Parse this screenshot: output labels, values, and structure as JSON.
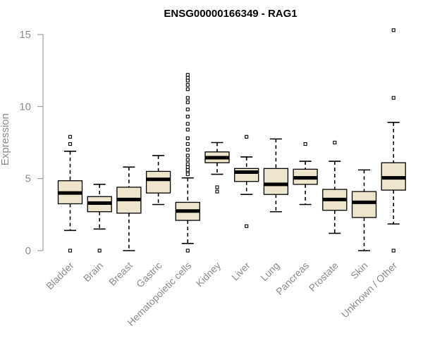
{
  "chart_data": {
    "type": "box",
    "title": "ENSG00000166349 - RAG1",
    "ylabel": "Expression",
    "xlabel": "",
    "ylim": [
      0,
      15.5
    ],
    "yticks": [
      0,
      5,
      10,
      15
    ],
    "colors": {
      "box_fill": "#ede5cc",
      "stroke": "#000000",
      "axis": "#8c8c8c"
    },
    "categories": [
      "Bladder",
      "Brain",
      "Breast",
      "Gastric",
      "Hematopoietic cells",
      "Kidney",
      "Liver",
      "Lung",
      "Pancreas",
      "Prostate",
      "Skin",
      "Unknown / Other"
    ],
    "boxes": [
      {
        "name": "Bladder",
        "low": 1.4,
        "q1": 3.25,
        "median": 4.0,
        "q3": 4.85,
        "high": 6.9,
        "outliers": [
          0,
          7.4,
          7.9
        ]
      },
      {
        "name": "Brain",
        "low": 1.5,
        "q1": 2.7,
        "median": 3.3,
        "q3": 3.75,
        "high": 4.6,
        "outliers": [
          0
        ]
      },
      {
        "name": "Breast",
        "low": 0,
        "q1": 2.6,
        "median": 3.55,
        "q3": 4.4,
        "high": 5.8,
        "outliers": []
      },
      {
        "name": "Gastric",
        "low": 3.2,
        "q1": 4.0,
        "median": 4.95,
        "q3": 5.5,
        "high": 6.6,
        "outliers": []
      },
      {
        "name": "Hematopoietic cells",
        "low": 0.5,
        "q1": 2.1,
        "median": 2.75,
        "q3": 3.35,
        "high": 5.05,
        "outliers": [
          0,
          5.3,
          5.5,
          5.6,
          5.8,
          6.0,
          6.3,
          6.6,
          7.0,
          7.4,
          7.8,
          8.4,
          8.8,
          9.3,
          9.8,
          10.3,
          10.6,
          11.2,
          11.5,
          11.8,
          12.0,
          12.2
        ]
      },
      {
        "name": "Kidney",
        "low": 5.3,
        "q1": 6.1,
        "median": 6.45,
        "q3": 6.85,
        "high": 7.5,
        "outliers": [
          4.1,
          4.4
        ]
      },
      {
        "name": "Liver",
        "low": 3.9,
        "q1": 4.8,
        "median": 5.45,
        "q3": 5.7,
        "high": 6.5,
        "outliers": [
          1.7,
          7.9
        ]
      },
      {
        "name": "Lung",
        "low": 2.7,
        "q1": 3.9,
        "median": 4.6,
        "q3": 5.7,
        "high": 7.75,
        "outliers": []
      },
      {
        "name": "Pancreas",
        "low": 3.2,
        "q1": 4.6,
        "median": 5.05,
        "q3": 5.65,
        "high": 6.2,
        "outliers": [
          7.4
        ]
      },
      {
        "name": "Prostate",
        "low": 1.2,
        "q1": 2.8,
        "median": 3.55,
        "q3": 4.25,
        "high": 6.2,
        "outliers": [
          7.5
        ]
      },
      {
        "name": "Skin",
        "low": 0,
        "q1": 2.3,
        "median": 3.35,
        "q3": 4.1,
        "high": 5.6,
        "outliers": []
      },
      {
        "name": "Unknown / Other",
        "low": 1.85,
        "q1": 4.2,
        "median": 5.05,
        "q3": 6.1,
        "high": 8.9,
        "outliers": [
          0,
          10.6,
          15.3
        ]
      }
    ]
  }
}
